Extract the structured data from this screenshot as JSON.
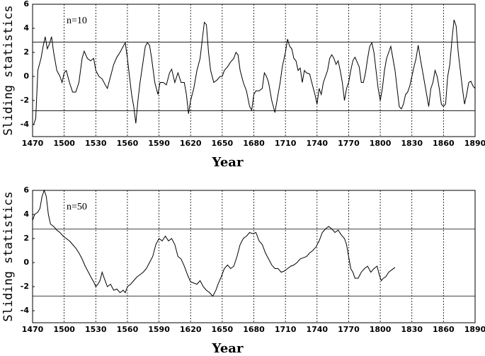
{
  "chart_data": [
    {
      "type": "line",
      "annotation": "n=10",
      "x_label": "Year",
      "y_label": "Sliding statistics",
      "color": "#000000",
      "xlim": [
        1470,
        1890
      ],
      "xticks": [
        1470,
        1500,
        1530,
        1560,
        1590,
        1620,
        1650,
        1680,
        1710,
        1740,
        1770,
        1800,
        1830,
        1860,
        1890
      ],
      "ylim": [
        -5,
        6
      ],
      "yticks": [
        -4,
        -2,
        0,
        2,
        4,
        6
      ],
      "hlines": [
        2.85,
        -2.85
      ],
      "grid": true,
      "x": [
        1471,
        1473,
        1475,
        1478,
        1480,
        1482,
        1484,
        1486,
        1488,
        1490,
        1493,
        1496,
        1498,
        1500,
        1502,
        1505,
        1508,
        1511,
        1514,
        1517,
        1519,
        1522,
        1525,
        1528,
        1530,
        1533,
        1536,
        1539,
        1541,
        1544,
        1547,
        1550,
        1553,
        1556,
        1558,
        1560,
        1562,
        1564,
        1566,
        1568,
        1570,
        1572,
        1575,
        1577,
        1579,
        1581,
        1583,
        1586,
        1589,
        1591,
        1594,
        1597,
        1600,
        1602,
        1605,
        1608,
        1611,
        1614,
        1616,
        1618,
        1620,
        1623,
        1626,
        1629,
        1631,
        1633,
        1635,
        1637,
        1639,
        1642,
        1645,
        1648,
        1650,
        1652,
        1655,
        1658,
        1661,
        1663,
        1665,
        1667,
        1670,
        1673,
        1676,
        1678,
        1680,
        1682,
        1685,
        1688,
        1690,
        1692,
        1694,
        1697,
        1700,
        1702,
        1705,
        1707,
        1710,
        1712,
        1714,
        1716,
        1718,
        1720,
        1722,
        1724,
        1726,
        1728,
        1730,
        1733,
        1735,
        1738,
        1740,
        1742,
        1744,
        1746,
        1748,
        1750,
        1752,
        1754,
        1756,
        1758,
        1760,
        1762,
        1764,
        1766,
        1768,
        1770,
        1772,
        1774,
        1776,
        1778,
        1780,
        1782,
        1784,
        1786,
        1788,
        1790,
        1792,
        1794,
        1796,
        1798,
        1800,
        1802,
        1804,
        1806,
        1808,
        1810,
        1812,
        1814,
        1816,
        1818,
        1820,
        1822,
        1824,
        1826,
        1828,
        1830,
        1832,
        1834,
        1836,
        1838,
        1840,
        1842,
        1844,
        1846,
        1848,
        1850,
        1852,
        1854,
        1856,
        1858,
        1860,
        1862,
        1864,
        1866,
        1868,
        1870,
        1872,
        1874,
        1876,
        1878,
        1880,
        1882,
        1884,
        1886,
        1888,
        1890
      ],
      "values": [
        -4,
        -3.5,
        0.5,
        1.5,
        2.5,
        3.3,
        2.3,
        2.7,
        3.3,
        2,
        0.5,
        0,
        -0.5,
        0.3,
        0.5,
        -0.5,
        -1.3,
        -1.3,
        -0.5,
        1.5,
        2.1,
        1.5,
        1.3,
        1.5,
        0.5,
        0,
        -0.2,
        -0.7,
        -1,
        0,
        1,
        1.6,
        2,
        2.5,
        2.8,
        1.5,
        0,
        -1.5,
        -2.5,
        -3.9,
        -2,
        -0.5,
        1.3,
        2.5,
        2.8,
        2.6,
        1.5,
        -0.5,
        -1.5,
        -0.5,
        -0.5,
        -0.7,
        0.3,
        0.6,
        -0.5,
        0.3,
        -0.5,
        -0.5,
        -1.5,
        -3.1,
        -2,
        -1,
        0.5,
        1.5,
        3,
        4.5,
        4.3,
        2,
        0.5,
        -0.5,
        -0.3,
        0,
        0,
        0.5,
        0.8,
        1.2,
        1.5,
        2,
        1.8,
        0.5,
        -0.5,
        -1.2,
        -2.5,
        -2.8,
        -1.5,
        -1.2,
        -1.2,
        -1,
        0.3,
        0,
        -0.5,
        -2,
        -3,
        -2,
        -0.5,
        0.8,
        2,
        3.1,
        2.5,
        2.3,
        1.5,
        1.3,
        0.5,
        0.7,
        -0.5,
        0.5,
        0.3,
        0.2,
        -0.5,
        -1.5,
        -2.3,
        -1,
        -1.5,
        -0.5,
        0,
        0.5,
        1.5,
        1.8,
        1.5,
        1,
        1.3,
        0.5,
        -0.5,
        -2,
        -1,
        -0.5,
        0.5,
        1.3,
        1.6,
        1.2,
        0.8,
        -0.5,
        -0.5,
        0.3,
        1.5,
        2.5,
        2.8,
        2,
        0.5,
        -1,
        -2,
        -1,
        0.5,
        1.5,
        2,
        2.5,
        1.5,
        0.5,
        -1,
        -2.5,
        -2.7,
        -2.3,
        -1.5,
        -1.3,
        -0.8,
        0,
        0.8,
        1.5,
        2.6,
        1.5,
        0.5,
        -0.5,
        -1.5,
        -2.5,
        -1,
        -0.5,
        0.5,
        0,
        -1,
        -2.3,
        -2.5,
        -2.3,
        0,
        1,
        3,
        4.7,
        4.2,
        2,
        0.5,
        -1,
        -2.3,
        -1.5,
        -0.5,
        -0.4,
        -0.8,
        -1
      ]
    },
    {
      "type": "line",
      "annotation": "n=50",
      "x_label": "Year",
      "y_label": "Sliding statistics",
      "color": "#000000",
      "xlim": [
        1470,
        1890
      ],
      "xticks": [
        1470,
        1500,
        1530,
        1560,
        1590,
        1620,
        1650,
        1680,
        1710,
        1740,
        1770,
        1800,
        1830,
        1860,
        1890
      ],
      "ylim": [
        -5,
        6
      ],
      "yticks": [
        -4,
        -2,
        0,
        2,
        4,
        6
      ],
      "hlines": [
        2.78,
        -2.78
      ],
      "grid": true,
      "x": [
        1470,
        1472,
        1475,
        1477,
        1479,
        1481,
        1483,
        1485,
        1487,
        1490,
        1493,
        1496,
        1499,
        1502,
        1505,
        1508,
        1511,
        1514,
        1517,
        1520,
        1523,
        1526,
        1528,
        1530,
        1532,
        1534,
        1536,
        1538,
        1541,
        1544,
        1547,
        1550,
        1553,
        1556,
        1558,
        1560,
        1563,
        1566,
        1569,
        1572,
        1575,
        1578,
        1581,
        1584,
        1587,
        1590,
        1593,
        1596,
        1599,
        1602,
        1605,
        1608,
        1611,
        1614,
        1617,
        1620,
        1623,
        1626,
        1629,
        1632,
        1635,
        1638,
        1641,
        1644,
        1646,
        1649,
        1652,
        1655,
        1658,
        1661,
        1664,
        1667,
        1670,
        1673,
        1676,
        1679,
        1682,
        1685,
        1688,
        1691,
        1694,
        1697,
        1700,
        1703,
        1706,
        1709,
        1712,
        1715,
        1718,
        1721,
        1724,
        1727,
        1730,
        1733,
        1736,
        1739,
        1742,
        1745,
        1748,
        1751,
        1754,
        1757,
        1760,
        1763,
        1766,
        1768,
        1770,
        1772,
        1774,
        1776,
        1779,
        1782,
        1785,
        1788,
        1791,
        1794,
        1797,
        1799,
        1801,
        1803,
        1805,
        1808,
        1811,
        1814
      ],
      "values": [
        3.5,
        4,
        4.2,
        4.5,
        5.5,
        6,
        5.5,
        4,
        3.2,
        3,
        2.7,
        2.5,
        2.2,
        2,
        1.8,
        1.5,
        1.2,
        0.8,
        0.3,
        -0.3,
        -0.8,
        -1.3,
        -1.6,
        -2,
        -1.8,
        -1.5,
        -0.8,
        -1.3,
        -2,
        -1.8,
        -2.3,
        -2.2,
        -2.5,
        -2.3,
        -2.5,
        -2,
        -1.8,
        -1.5,
        -1.2,
        -1,
        -0.8,
        -0.5,
        0,
        0.5,
        1.5,
        2,
        1.8,
        2.2,
        1.8,
        2,
        1.5,
        0.5,
        0.3,
        -0.3,
        -1,
        -1.6,
        -1.7,
        -1.8,
        -1.5,
        -2,
        -2.3,
        -2.5,
        -2.8,
        -2.3,
        -1.8,
        -1.2,
        -0.5,
        -0.2,
        -0.5,
        -0.3,
        0.5,
        1.5,
        2,
        2.2,
        2.5,
        2.4,
        2.5,
        1.8,
        1.5,
        0.8,
        0.3,
        -0.2,
        -0.5,
        -0.5,
        -0.8,
        -0.7,
        -0.5,
        -0.3,
        -0.2,
        0,
        0.3,
        0.4,
        0.5,
        0.8,
        1,
        1.3,
        1.8,
        2.5,
        2.8,
        3,
        2.8,
        2.5,
        2.7,
        2.3,
        2,
        1.5,
        0.5,
        -0.5,
        -0.8,
        -1.3,
        -1.3,
        -0.8,
        -0.5,
        -0.3,
        -0.8,
        -0.5,
        -0.3,
        -1,
        -1.5,
        -1.3,
        -1.2,
        -0.8,
        -0.6,
        -0.4
      ]
    }
  ]
}
